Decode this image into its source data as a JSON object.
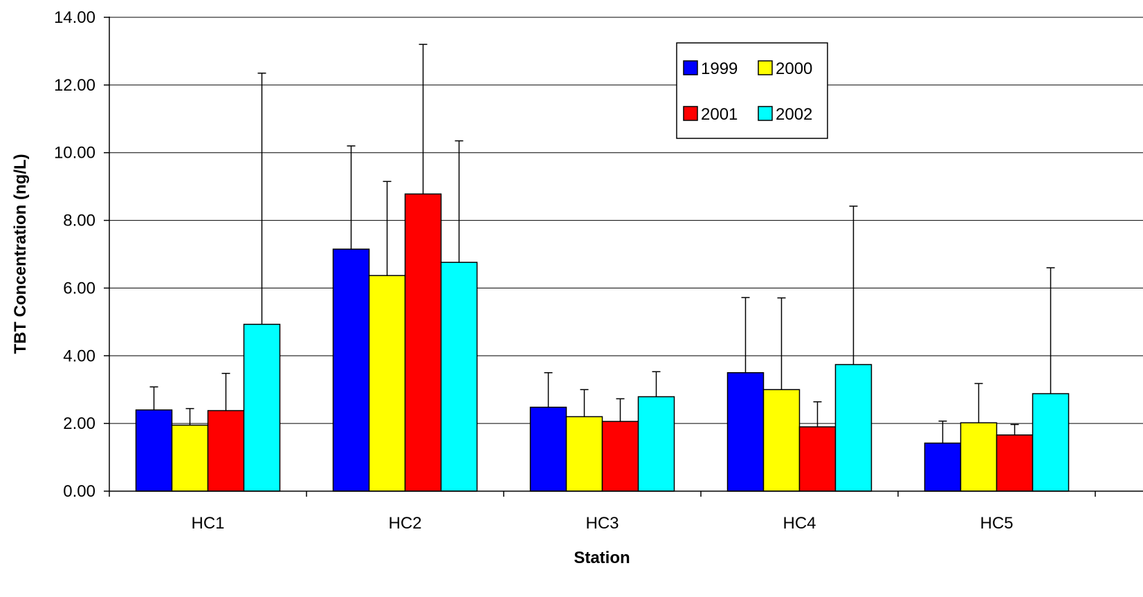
{
  "chart_data": {
    "type": "bar",
    "title": "",
    "xlabel": "Station",
    "ylabel": "TBT Concentration (ng/L)",
    "ylim": [
      0,
      14
    ],
    "yticks": [
      "0.00",
      "2.00",
      "4.00",
      "6.00",
      "8.00",
      "10.00",
      "12.00",
      "14.00"
    ],
    "categories": [
      "HC1",
      "HC2",
      "HC3",
      "HC4",
      "HC5"
    ],
    "grid": true,
    "legend_position": "top-right",
    "error_bars": "upper",
    "series": [
      {
        "name": "1999",
        "color": "#0000ff",
        "values": [
          2.4,
          7.15,
          2.48,
          3.5,
          1.42
        ],
        "error_upper": [
          3.08,
          10.2,
          3.5,
          5.72,
          2.07
        ]
      },
      {
        "name": "2000",
        "color": "#ffff00",
        "values": [
          1.95,
          6.37,
          2.2,
          3.0,
          2.02
        ],
        "error_upper": [
          2.44,
          9.15,
          3.0,
          5.71,
          3.18
        ]
      },
      {
        "name": "2001",
        "color": "#ff0000",
        "values": [
          2.38,
          8.78,
          2.06,
          1.9,
          1.66
        ],
        "error_upper": [
          3.48,
          13.2,
          2.73,
          2.64,
          1.97
        ]
      },
      {
        "name": "2002",
        "color": "#00ffff",
        "values": [
          4.93,
          6.76,
          2.79,
          3.74,
          2.88
        ],
        "error_upper": [
          12.35,
          10.35,
          3.53,
          8.42,
          6.6
        ]
      }
    ]
  }
}
